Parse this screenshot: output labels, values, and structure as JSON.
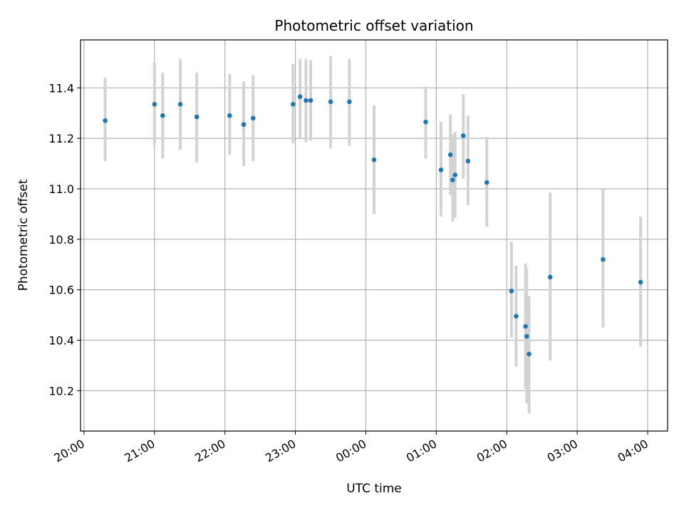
{
  "chart_data": {
    "type": "scatter",
    "title": "Photometric offset variation",
    "xlabel": "UTC time",
    "ylabel": "Photometric offset",
    "x_ticks": [
      "20:00",
      "21:00",
      "22:00",
      "23:00",
      "00:00",
      "01:00",
      "02:00",
      "03:00",
      "04:00"
    ],
    "y_ticks": [
      "10.2",
      "10.4",
      "10.6",
      "10.8",
      "11.0",
      "11.2",
      "11.4"
    ],
    "xlim": [
      "19:57",
      "04:17"
    ],
    "ylim": [
      10.04,
      11.59
    ],
    "grid": true,
    "point_color": "#1f77b4",
    "error_bar_color": "#d3d3d3",
    "points": [
      {
        "x": "20:18",
        "y": 11.27,
        "low": 11.11,
        "high": 11.44
      },
      {
        "x": "21:00",
        "y": 11.335,
        "low": 11.175,
        "high": 11.5
      },
      {
        "x": "21:07",
        "y": 11.29,
        "low": 11.12,
        "high": 11.46
      },
      {
        "x": "21:22",
        "y": 11.335,
        "low": 11.155,
        "high": 11.515
      },
      {
        "x": "21:36",
        "y": 11.285,
        "low": 11.105,
        "high": 11.46
      },
      {
        "x": "22:04",
        "y": 11.29,
        "low": 11.135,
        "high": 11.455
      },
      {
        "x": "22:16",
        "y": 11.255,
        "low": 11.09,
        "high": 11.425
      },
      {
        "x": "22:24",
        "y": 11.28,
        "low": 11.11,
        "high": 11.45
      },
      {
        "x": "22:58",
        "y": 11.335,
        "low": 11.18,
        "high": 11.495
      },
      {
        "x": "23:04",
        "y": 11.365,
        "low": 11.2,
        "high": 11.515
      },
      {
        "x": "23:09",
        "y": 11.35,
        "low": 11.185,
        "high": 11.515
      },
      {
        "x": "23:13",
        "y": 11.35,
        "low": 11.19,
        "high": 11.51
      },
      {
        "x": "23:30",
        "y": 11.345,
        "low": 11.16,
        "high": 11.525
      },
      {
        "x": "23:46",
        "y": 11.345,
        "low": 11.17,
        "high": 11.515
      },
      {
        "x": "00:07",
        "y": 11.115,
        "low": 10.9,
        "high": 11.33
      },
      {
        "x": "00:51",
        "y": 11.265,
        "low": 11.12,
        "high": 11.405
      },
      {
        "x": "01:04",
        "y": 11.075,
        "low": 10.89,
        "high": 11.265
      },
      {
        "x": "01:12",
        "y": 11.135,
        "low": 10.975,
        "high": 11.295
      },
      {
        "x": "01:14",
        "y": 11.035,
        "low": 10.87,
        "high": 11.215
      },
      {
        "x": "01:16",
        "y": 11.055,
        "low": 10.885,
        "high": 11.225
      },
      {
        "x": "01:23",
        "y": 11.21,
        "low": 11.04,
        "high": 11.375
      },
      {
        "x": "01:27",
        "y": 11.11,
        "low": 10.935,
        "high": 11.29
      },
      {
        "x": "01:43",
        "y": 11.025,
        "low": 10.85,
        "high": 11.205
      },
      {
        "x": "02:04",
        "y": 10.595,
        "low": 10.41,
        "high": 10.79
      },
      {
        "x": "02:08",
        "y": 10.495,
        "low": 10.295,
        "high": 10.695
      },
      {
        "x": "02:16",
        "y": 10.455,
        "low": 10.21,
        "high": 10.705
      },
      {
        "x": "02:17",
        "y": 10.415,
        "low": 10.15,
        "high": 10.685
      },
      {
        "x": "02:19",
        "y": 10.345,
        "low": 10.11,
        "high": 10.575
      },
      {
        "x": "02:37",
        "y": 10.65,
        "low": 10.32,
        "high": 10.985
      },
      {
        "x": "03:22",
        "y": 10.72,
        "low": 10.45,
        "high": 11.0
      },
      {
        "x": "03:54",
        "y": 10.63,
        "low": 10.375,
        "high": 10.89
      }
    ]
  }
}
